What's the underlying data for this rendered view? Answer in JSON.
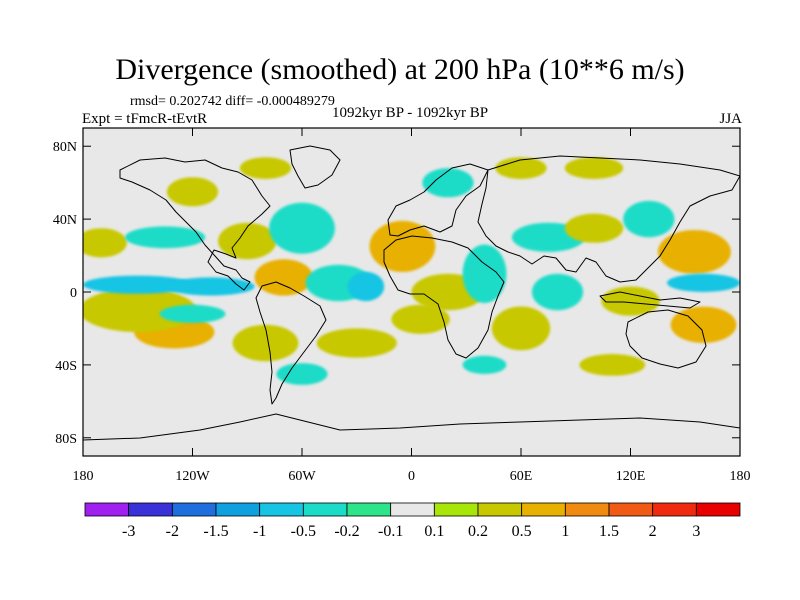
{
  "chart_data": {
    "type": "heatmap",
    "title": "Divergence (smoothed) at 200 hPa (10**6 m/s)",
    "stats_line": "rmsd= 0.202742 diff= -0.000489279",
    "experiment": "Expt = tFmcR-tEvtR",
    "period": "1092kyr BP - 1092kyr BP",
    "season": "JJA",
    "x_range": [
      -180,
      180
    ],
    "y_range": [
      -90,
      90
    ],
    "x_ticks": [
      {
        "value": -180,
        "label": "180"
      },
      {
        "value": -120,
        "label": "120W"
      },
      {
        "value": -60,
        "label": "60W"
      },
      {
        "value": 0,
        "label": "0"
      },
      {
        "value": 60,
        "label": "60E"
      },
      {
        "value": 120,
        "label": "120E"
      },
      {
        "value": 180,
        "label": "180"
      }
    ],
    "y_ticks": [
      {
        "value": 80,
        "label": "80N"
      },
      {
        "value": 40,
        "label": "40N"
      },
      {
        "value": 0,
        "label": "0"
      },
      {
        "value": -40,
        "label": "40S"
      },
      {
        "value": -80,
        "label": "80S"
      }
    ],
    "colorbar_levels": [
      "-3",
      "-2",
      "-1.5",
      "-1",
      "-0.5",
      "-0.2",
      "-0.1",
      "0.1",
      "0.2",
      "0.5",
      "1",
      "1.5",
      "2",
      "3"
    ],
    "colorbar_colors": [
      "#a020f0",
      "#3a32d8",
      "#1e6ee0",
      "#0fa0e0",
      "#17c4e4",
      "#1cdcc8",
      "#2ee48a",
      "#e8e8e8",
      "#a8e60a",
      "#c8c800",
      "#e8b000",
      "#f08a10",
      "#f05a14",
      "#f02a10",
      "#e80000"
    ],
    "features": [
      {
        "lon": -130,
        "lat": -22,
        "value": 0.8,
        "rlon": 22,
        "rlat": 9
      },
      {
        "lon": -150,
        "lat": -10,
        "value": 0.3,
        "rlon": 32,
        "rlat": 12
      },
      {
        "lon": -150,
        "lat": 4,
        "value": -0.6,
        "rlon": 30,
        "rlat": 5
      },
      {
        "lon": -110,
        "lat": 3,
        "value": -0.9,
        "rlon": 24,
        "rlat": 5
      },
      {
        "lon": -120,
        "lat": -12,
        "value": -0.3,
        "rlon": 18,
        "rlat": 5
      },
      {
        "lon": -170,
        "lat": 27,
        "value": 0.4,
        "rlon": 14,
        "rlat": 8
      },
      {
        "lon": -135,
        "lat": 30,
        "value": -0.3,
        "rlon": 22,
        "rlat": 6
      },
      {
        "lon": -70,
        "lat": 8,
        "value": 0.7,
        "rlon": 16,
        "rlat": 10
      },
      {
        "lon": -90,
        "lat": 28,
        "value": 0.3,
        "rlon": 16,
        "rlat": 10
      },
      {
        "lon": -60,
        "lat": 35,
        "value": -0.3,
        "rlon": 18,
        "rlat": 14
      },
      {
        "lon": -80,
        "lat": -28,
        "value": 0.3,
        "rlon": 18,
        "rlat": 10
      },
      {
        "lon": -40,
        "lat": 5,
        "value": -0.3,
        "rlon": 18,
        "rlat": 10
      },
      {
        "lon": -25,
        "lat": 3,
        "value": -0.9,
        "rlon": 10,
        "rlat": 8
      },
      {
        "lon": -30,
        "lat": -28,
        "value": 0.3,
        "rlon": 22,
        "rlat": 8
      },
      {
        "lon": -5,
        "lat": 25,
        "value": 0.7,
        "rlon": 18,
        "rlat": 14
      },
      {
        "lon": 20,
        "lat": 0,
        "value": 0.3,
        "rlon": 20,
        "rlat": 10
      },
      {
        "lon": 5,
        "lat": -15,
        "value": 0.3,
        "rlon": 16,
        "rlat": 8
      },
      {
        "lon": 40,
        "lat": 10,
        "value": -0.3,
        "rlon": 12,
        "rlat": 16
      },
      {
        "lon": 75,
        "lat": 30,
        "value": -0.3,
        "rlon": 20,
        "rlat": 8
      },
      {
        "lon": 60,
        "lat": -20,
        "value": 0.3,
        "rlon": 16,
        "rlat": 12
      },
      {
        "lon": 80,
        "lat": 0,
        "value": -0.3,
        "rlon": 14,
        "rlat": 10
      },
      {
        "lon": 100,
        "lat": 35,
        "value": 0.4,
        "rlon": 16,
        "rlat": 8
      },
      {
        "lon": 130,
        "lat": 40,
        "value": -0.3,
        "rlon": 14,
        "rlat": 10
      },
      {
        "lon": 155,
        "lat": 22,
        "value": 0.6,
        "rlon": 20,
        "rlat": 12
      },
      {
        "lon": 160,
        "lat": 5,
        "value": -0.8,
        "rlon": 20,
        "rlat": 5
      },
      {
        "lon": 160,
        "lat": -18,
        "value": 0.8,
        "rlon": 18,
        "rlat": 10
      },
      {
        "lon": 120,
        "lat": -5,
        "value": 0.3,
        "rlon": 16,
        "rlat": 8
      },
      {
        "lon": 110,
        "lat": -40,
        "value": 0.3,
        "rlon": 18,
        "rlat": 6
      },
      {
        "lon": 40,
        "lat": -40,
        "value": -0.3,
        "rlon": 12,
        "rlat": 5
      },
      {
        "lon": 20,
        "lat": 60,
        "value": -0.3,
        "rlon": 14,
        "rlat": 8
      },
      {
        "lon": 60,
        "lat": 68,
        "value": 0.3,
        "rlon": 14,
        "rlat": 6
      },
      {
        "lon": 100,
        "lat": 68,
        "value": 0.3,
        "rlon": 16,
        "rlat": 6
      },
      {
        "lon": -120,
        "lat": 55,
        "value": 0.3,
        "rlon": 14,
        "rlat": 8
      },
      {
        "lon": -80,
        "lat": 68,
        "value": 0.3,
        "rlon": 14,
        "rlat": 6
      },
      {
        "lon": -60,
        "lat": -45,
        "value": -0.3,
        "rlon": 14,
        "rlat": 6
      }
    ]
  }
}
